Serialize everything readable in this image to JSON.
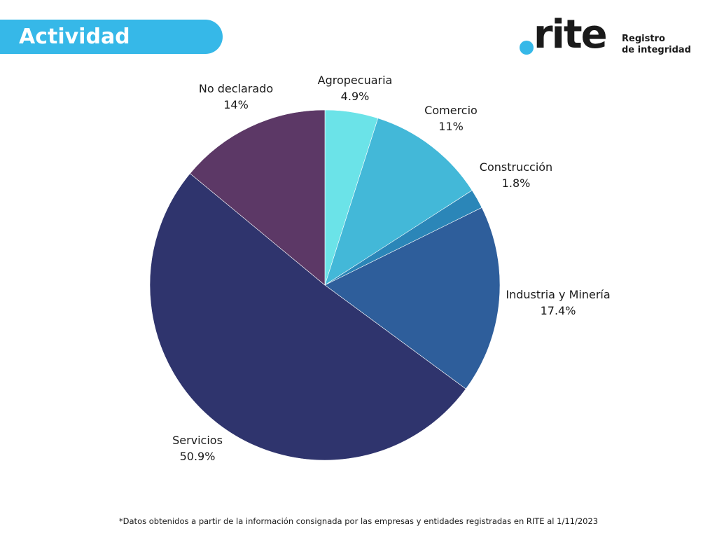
{
  "header": {
    "title": "Actividad"
  },
  "logo": {
    "word": "rite",
    "tagline_line1": "Registro",
    "tagline_line2": "de integridad",
    "accent_color": "#36b8e8"
  },
  "chart_data": {
    "type": "pie",
    "title": "Actividad",
    "start": "12 o'clock",
    "direction": "clockwise",
    "legend": "none",
    "slices": [
      {
        "label": "Agropecuaria",
        "value": 4.9,
        "value_label": "4.9%",
        "color": "#6be3e8"
      },
      {
        "label": "Comercio",
        "value": 11,
        "value_label": "11%",
        "color": "#43b8d8"
      },
      {
        "label": "Construcción",
        "value": 1.8,
        "value_label": "1.8%",
        "color": "#2b86b8"
      },
      {
        "label": "Industria y Minería",
        "value": 17.4,
        "value_label": "17.4%",
        "color": "#2e5e9b"
      },
      {
        "label": "Servicios",
        "value": 50.9,
        "value_label": "50.9%",
        "color": "#2f346d"
      },
      {
        "label": "No declarado",
        "value": 14,
        "value_label": "14%",
        "color": "#5c3866"
      }
    ]
  },
  "footnote": "*Datos obtenidos a partir de la información consignada por las empresas y entidades registradas en RITE al 1/11/2023"
}
